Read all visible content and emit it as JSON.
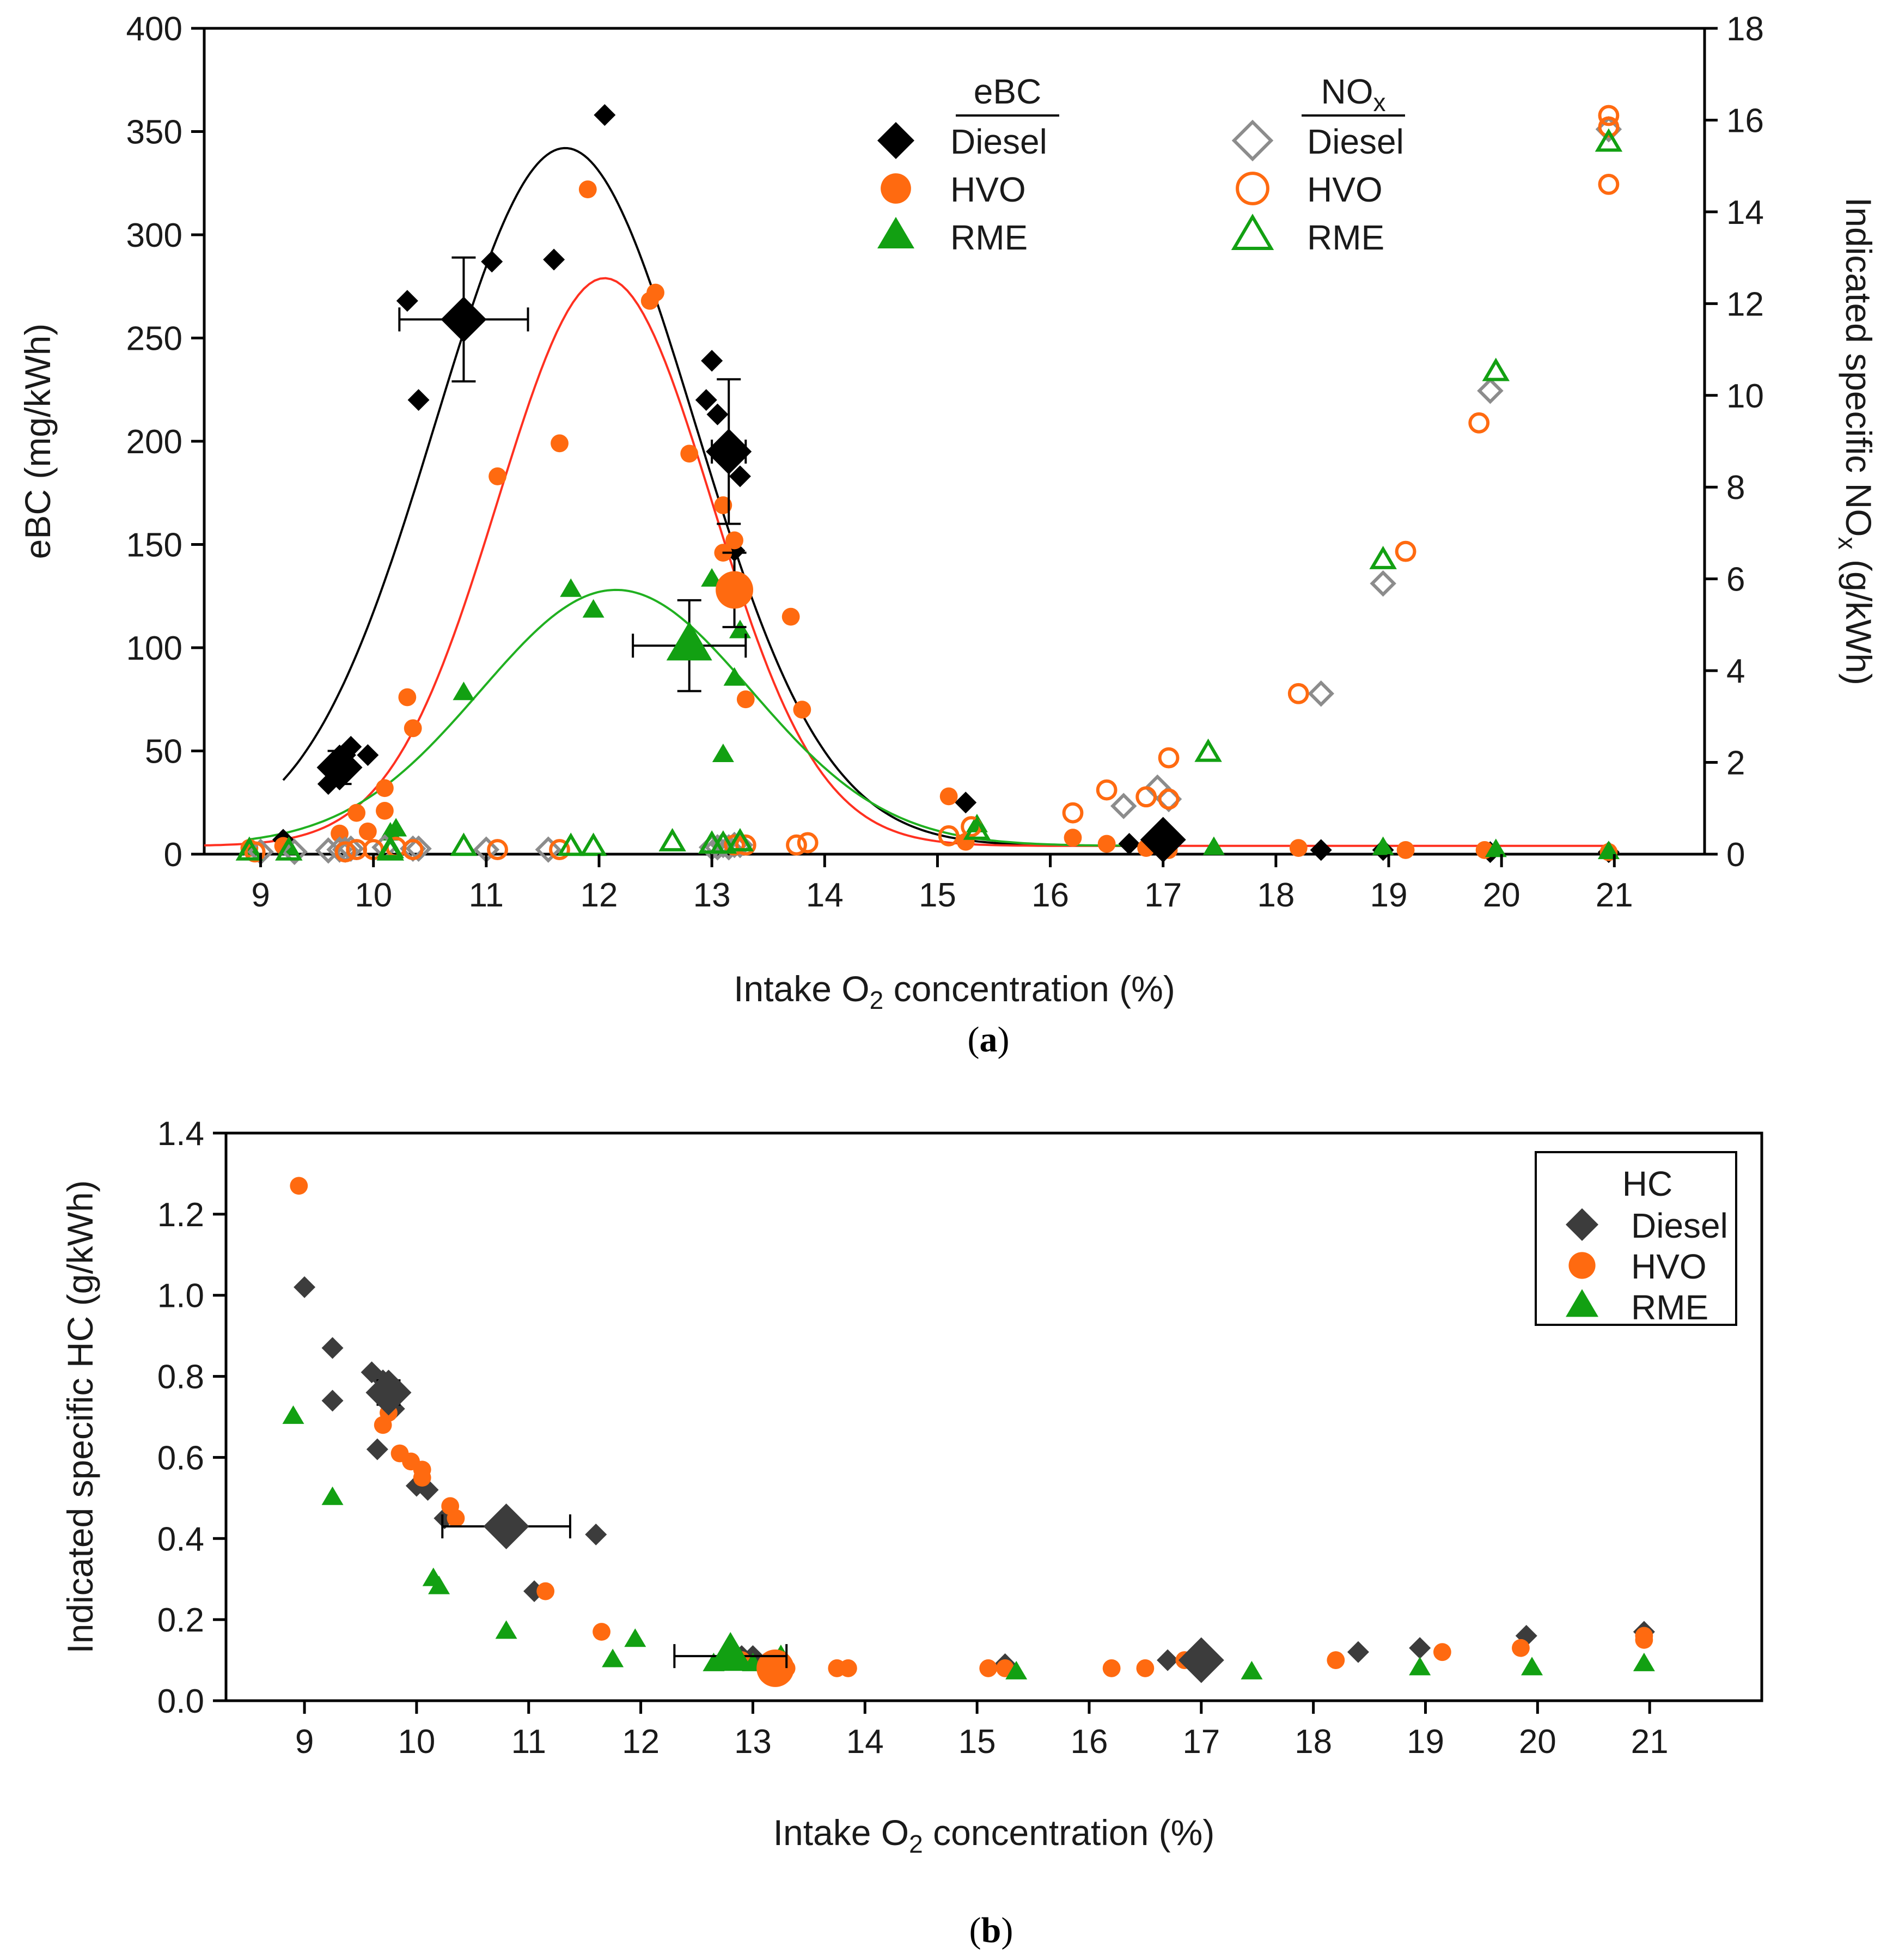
{
  "colors": {
    "diesel": "#000000",
    "hvo": "#ff6a10",
    "rme": "#12a012",
    "diesel_nox": "#8c8c8c",
    "diesel_hc": "#3c3c3c"
  },
  "chart_data": [
    {
      "type": "scatter",
      "panel_label": "a",
      "xlabel_prefix": "Intake O",
      "xlabel_sub": "2",
      "xlabel_suffix": " concentration (%)",
      "ylabel": "eBC (mg/kWh)",
      "y2label_prefix": "Indicated specific NO",
      "y2label_sub": "x",
      "y2label_suffix": " (g/kWh)",
      "xlim": [
        8.5,
        21.8
      ],
      "ylim": [
        0,
        400
      ],
      "y2lim": [
        0,
        18
      ],
      "xticks": [
        9,
        10,
        11,
        12,
        13,
        14,
        15,
        16,
        17,
        18,
        19,
        20,
        21
      ],
      "yticks": [
        0,
        50,
        100,
        150,
        200,
        250,
        300,
        350,
        400
      ],
      "y2ticks": [
        0,
        2,
        4,
        6,
        8,
        10,
        12,
        14,
        16,
        18
      ],
      "legend": {
        "position": "top-center",
        "groups": [
          {
            "title": "eBC",
            "title_sub": "",
            "entries": [
              {
                "label": "Diesel",
                "marker": "diamond",
                "fill": true,
                "color": "#000000"
              },
              {
                "label": "HVO",
                "marker": "circle",
                "fill": true,
                "color": "#ff6a10"
              },
              {
                "label": "RME",
                "marker": "triangle",
                "fill": true,
                "color": "#12a012"
              }
            ]
          },
          {
            "title": "NO",
            "title_sub": "x",
            "entries": [
              {
                "label": "Diesel",
                "marker": "diamond",
                "fill": false,
                "color": "#8c8c8c"
              },
              {
                "label": "HVO",
                "marker": "circle",
                "fill": false,
                "color": "#ff6a10"
              },
              {
                "label": "RME",
                "marker": "triangle",
                "fill": false,
                "color": "#12a012"
              }
            ]
          }
        ]
      },
      "series": [
        {
          "name": "Diesel",
          "quantity": "eBC",
          "axis": "left",
          "marker": "diamond",
          "fill": true,
          "color": "#000000",
          "x": [
            9.2,
            9.6,
            9.65,
            9.7,
            9.75,
            9.8,
            9.95,
            10.3,
            10.4,
            11.05,
            11.6,
            12.05,
            12.95,
            13.0,
            13.05,
            13.1,
            13.2,
            13.25,
            15.25,
            16.7,
            17.0,
            18.4,
            18.95,
            19.9,
            20.95
          ],
          "y": [
            7,
            34,
            40,
            44,
            48,
            52,
            48,
            268,
            220,
            287,
            288,
            358,
            220,
            239,
            213,
            197,
            147,
            183,
            25,
            5,
            3,
            2,
            2,
            1,
            1
          ]
        },
        {
          "name": "HVO",
          "quantity": "eBC",
          "axis": "left",
          "marker": "circle",
          "fill": true,
          "color": "#ff6a10",
          "x": [
            8.9,
            9.2,
            9.7,
            9.85,
            9.95,
            10.1,
            10.1,
            10.3,
            10.35,
            11.1,
            11.65,
            11.9,
            12.45,
            12.5,
            12.8,
            13.1,
            13.1,
            13.2,
            13.3,
            13.7,
            13.8,
            15.1,
            15.25,
            16.2,
            16.5,
            16.85,
            17.05,
            18.2,
            19.15,
            19.85,
            20.95
          ],
          "y": [
            3,
            4,
            10,
            20,
            11,
            21,
            32,
            76,
            61,
            183,
            199,
            322,
            268,
            272,
            194,
            146,
            169,
            152,
            75,
            115,
            70,
            28,
            6,
            8,
            5,
            3,
            2,
            3,
            2,
            2,
            1
          ]
        },
        {
          "name": "RME",
          "quantity": "eBC",
          "axis": "left",
          "marker": "triangle",
          "fill": true,
          "color": "#12a012",
          "x": [
            8.9,
            9.25,
            10.15,
            10.2,
            10.8,
            11.75,
            11.95,
            13.0,
            13.1,
            13.2,
            13.25,
            15.35,
            17.45,
            18.95,
            19.95,
            20.95
          ],
          "y": [
            3,
            3,
            10,
            12,
            78,
            128,
            118,
            133,
            48,
            85,
            108,
            14,
            3,
            3,
            2,
            1
          ]
        },
        {
          "name": "Diesel",
          "quantity": "NOx",
          "axis": "right",
          "marker": "diamond",
          "fill": false,
          "color": "#8c8c8c",
          "x": [
            9.0,
            9.3,
            9.6,
            9.7,
            9.75,
            9.8,
            10.1,
            10.35,
            10.4,
            11.0,
            11.55,
            13.0,
            13.05,
            13.1,
            13.15,
            13.2,
            13.25,
            16.65,
            16.95,
            17.05,
            18.4,
            18.95,
            19.9,
            20.95
          ],
          "y": [
            0.05,
            0.05,
            0.08,
            0.1,
            0.1,
            0.12,
            0.15,
            0.12,
            0.12,
            0.1,
            0.1,
            0.15,
            0.15,
            0.2,
            0.15,
            0.2,
            0.2,
            1.05,
            1.45,
            1.2,
            3.5,
            5.9,
            10.1,
            15.8
          ]
        },
        {
          "name": "HVO",
          "quantity": "NOx",
          "axis": "right",
          "marker": "circle",
          "fill": false,
          "color": "#ff6a10",
          "x": [
            8.95,
            9.75,
            9.85,
            10.0,
            10.2,
            10.35,
            11.1,
            11.65,
            13.2,
            13.3,
            13.75,
            13.85,
            15.1,
            15.3,
            16.2,
            16.5,
            16.85,
            17.05,
            17.05,
            18.2,
            19.15,
            19.8,
            20.95,
            20.95,
            20.95
          ],
          "y": [
            0.05,
            0.05,
            0.1,
            0.1,
            0.15,
            0.1,
            0.1,
            0.1,
            0.2,
            0.2,
            0.2,
            0.25,
            0.4,
            0.6,
            0.9,
            1.4,
            1.25,
            2.1,
            1.2,
            3.5,
            6.6,
            9.4,
            16.1,
            15.85,
            14.6
          ]
        },
        {
          "name": "RME",
          "quantity": "NOx",
          "axis": "right",
          "marker": "triangle",
          "fill": false,
          "color": "#12a012",
          "x": [
            8.9,
            9.25,
            10.15,
            10.15,
            10.8,
            11.75,
            11.95,
            12.65,
            13.0,
            13.1,
            13.25,
            15.35,
            17.4,
            18.95,
            19.95,
            20.95
          ],
          "y": [
            0.05,
            0.05,
            0.05,
            0.1,
            0.15,
            0.15,
            0.15,
            0.25,
            0.2,
            0.2,
            0.25,
            0.5,
            2.2,
            6.4,
            10.5,
            15.5
          ]
        },
        {
          "name": "Diesel",
          "quantity": "eBC mean",
          "axis": "left",
          "marker": "diamond",
          "fill": true,
          "color": "#000000",
          "large": true,
          "x": [
            9.7,
            10.8,
            13.15,
            17.0
          ],
          "y": [
            42,
            259,
            195,
            7
          ],
          "xerr": [
            null,
            0.57,
            0.15,
            null
          ],
          "yerr": [
            8,
            30,
            35,
            null
          ]
        },
        {
          "name": "HVO",
          "quantity": "eBC mean",
          "axis": "left",
          "marker": "circle",
          "fill": true,
          "color": "#ff6a10",
          "large": true,
          "x": [
            13.2
          ],
          "y": [
            128
          ],
          "xerr": [
            null
          ],
          "yerr": [
            18
          ]
        },
        {
          "name": "RME",
          "quantity": "eBC mean",
          "axis": "left",
          "marker": "triangle",
          "fill": true,
          "color": "#12a012",
          "large": true,
          "x": [
            12.8
          ],
          "y": [
            101
          ],
          "xerr": [
            0.5
          ],
          "yerr": [
            22
          ]
        }
      ],
      "fits": [
        {
          "color": "#000000",
          "amplitude": 338,
          "center": 11.7,
          "sigma": 1.15,
          "baseline": 4,
          "x_range": [
            9.2,
            17.0
          ]
        },
        {
          "color": "#ff3020",
          "amplitude": 275,
          "center": 12.05,
          "sigma": 0.95,
          "baseline": 4,
          "x_range": [
            8.5,
            21.0
          ]
        },
        {
          "color": "#20b020",
          "amplitude": 124,
          "center": 12.15,
          "sigma": 1.2,
          "baseline": 4,
          "x_range": [
            8.9,
            17.0
          ]
        }
      ]
    },
    {
      "type": "scatter",
      "panel_label": "b",
      "xlabel_prefix": "Intake O",
      "xlabel_sub": "2",
      "xlabel_suffix": " concentration (%)",
      "ylabel": "Indicated specific HC (g/kWh)",
      "xlim": [
        8.3,
        22.0
      ],
      "ylim": [
        0,
        1.4
      ],
      "xticks": [
        9,
        10,
        11,
        12,
        13,
        14,
        15,
        16,
        17,
        18,
        19,
        20,
        21
      ],
      "yticks": [
        0.0,
        0.2,
        0.4,
        0.6,
        0.8,
        1.0,
        1.2,
        1.4
      ],
      "ytick_labels": [
        "0.0",
        "0.2",
        "0.4",
        "0.6",
        "0.8",
        "1.0",
        "1.2",
        "1.4"
      ],
      "legend": {
        "position": "top-right",
        "title": "HC",
        "entries": [
          {
            "label": "Diesel",
            "marker": "diamond",
            "fill": true,
            "color": "#3c3c3c"
          },
          {
            "label": "HVO",
            "marker": "circle",
            "fill": true,
            "color": "#ff6a10"
          },
          {
            "label": "RME",
            "marker": "triangle",
            "fill": true,
            "color": "#12a012"
          }
        ]
      },
      "series": [
        {
          "name": "Diesel",
          "marker": "diamond",
          "fill": true,
          "color": "#3c3c3c",
          "x": [
            9.0,
            9.25,
            9.25,
            9.6,
            9.65,
            9.7,
            9.75,
            9.8,
            10.0,
            10.1,
            10.25,
            11.05,
            11.6,
            12.9,
            13.0,
            13.1,
            13.2,
            15.25,
            16.7,
            18.4,
            18.95,
            19.9,
            20.95
          ],
          "y": [
            1.02,
            0.87,
            0.74,
            0.81,
            0.62,
            0.79,
            0.78,
            0.72,
            0.53,
            0.52,
            0.45,
            0.27,
            0.41,
            0.11,
            0.11,
            0.09,
            0.07,
            0.09,
            0.1,
            0.12,
            0.13,
            0.16,
            0.17
          ]
        },
        {
          "name": "HVO",
          "marker": "circle",
          "fill": true,
          "color": "#ff6a10",
          "x": [
            8.95,
            9.7,
            9.75,
            9.85,
            9.95,
            10.05,
            10.05,
            10.3,
            10.35,
            11.15,
            11.65,
            12.9,
            13.3,
            13.75,
            13.85,
            15.1,
            15.25,
            16.2,
            16.5,
            16.85,
            18.2,
            19.15,
            19.85,
            20.95,
            20.95
          ],
          "y": [
            1.27,
            0.68,
            0.71,
            0.61,
            0.59,
            0.57,
            0.55,
            0.48,
            0.45,
            0.27,
            0.17,
            0.1,
            0.08,
            0.08,
            0.08,
            0.08,
            0.08,
            0.08,
            0.08,
            0.1,
            0.1,
            0.12,
            0.13,
            0.16,
            0.15
          ]
        },
        {
          "name": "RME",
          "marker": "triangle",
          "fill": true,
          "color": "#12a012",
          "x": [
            8.9,
            9.25,
            10.15,
            10.2,
            10.8,
            11.75,
            11.95,
            12.65,
            13.0,
            13.25,
            15.35,
            17.45,
            18.95,
            19.95,
            20.95
          ],
          "y": [
            0.7,
            0.5,
            0.3,
            0.28,
            0.17,
            0.1,
            0.15,
            0.09,
            0.09,
            0.11,
            0.07,
            0.07,
            0.08,
            0.08,
            0.09
          ]
        },
        {
          "name": "Diesel",
          "marker": "diamond",
          "fill": true,
          "color": "#3c3c3c",
          "large": true,
          "x": [
            9.75,
            10.8,
            17.0
          ],
          "y": [
            0.76,
            0.43,
            0.1
          ],
          "xerr": [
            null,
            0.57,
            null
          ],
          "yerr": [
            0.03,
            null,
            null
          ]
        },
        {
          "name": "HVO",
          "marker": "circle",
          "fill": true,
          "color": "#ff6a10",
          "large": true,
          "x": [
            13.2
          ],
          "y": [
            0.08
          ],
          "xerr": [
            null
          ],
          "yerr": [
            null
          ]
        },
        {
          "name": "RME",
          "marker": "triangle",
          "fill": true,
          "color": "#12a012",
          "large": true,
          "x": [
            12.8
          ],
          "y": [
            0.11
          ],
          "xerr": [
            0.5
          ],
          "yerr": [
            null
          ]
        }
      ]
    }
  ]
}
